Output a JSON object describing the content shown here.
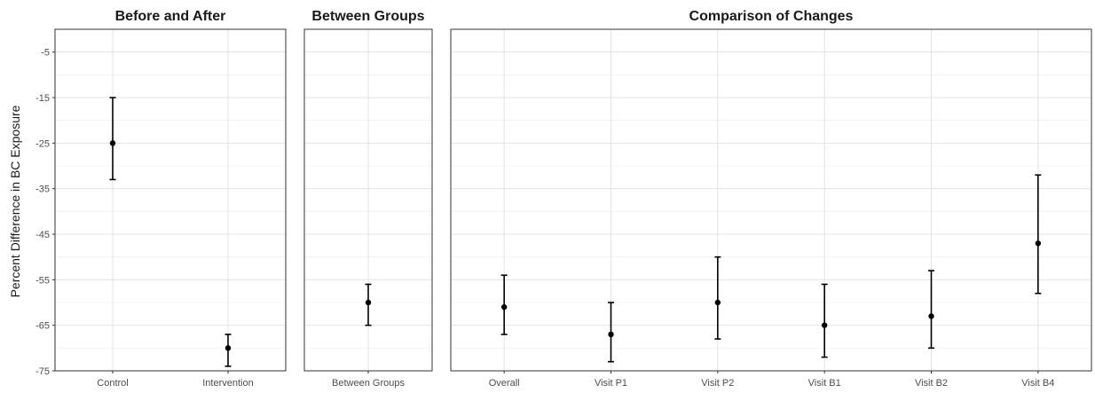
{
  "chart_data": {
    "type": "errorbar",
    "ylabel": "Percent Difference in  BC  Exposure",
    "ylim": [
      -75,
      0
    ],
    "y_ticks": [
      -5,
      -15,
      -25,
      -35,
      -45,
      -55,
      -65,
      -75
    ],
    "grid": true,
    "panels": [
      {
        "title": "Before and After",
        "categories": [
          "Control",
          "Intervention"
        ],
        "estimates": [
          -25,
          -70
        ],
        "lower": [
          -33,
          -74
        ],
        "upper": [
          -15,
          -67
        ]
      },
      {
        "title": "Between Groups",
        "categories": [
          "Between Groups"
        ],
        "estimates": [
          -60
        ],
        "lower": [
          -65
        ],
        "upper": [
          -56
        ]
      },
      {
        "title": "Comparison of Changes",
        "categories": [
          "Overall",
          "Visit P1",
          "Visit P2",
          "Visit B1",
          "Visit B2",
          "Visit B4"
        ],
        "estimates": [
          -61,
          -67,
          -60,
          -65,
          -63,
          -47
        ],
        "lower": [
          -67,
          -73,
          -68,
          -72,
          -70,
          -58
        ],
        "upper": [
          -54,
          -60,
          -50,
          -56,
          -53,
          -32
        ]
      }
    ]
  }
}
